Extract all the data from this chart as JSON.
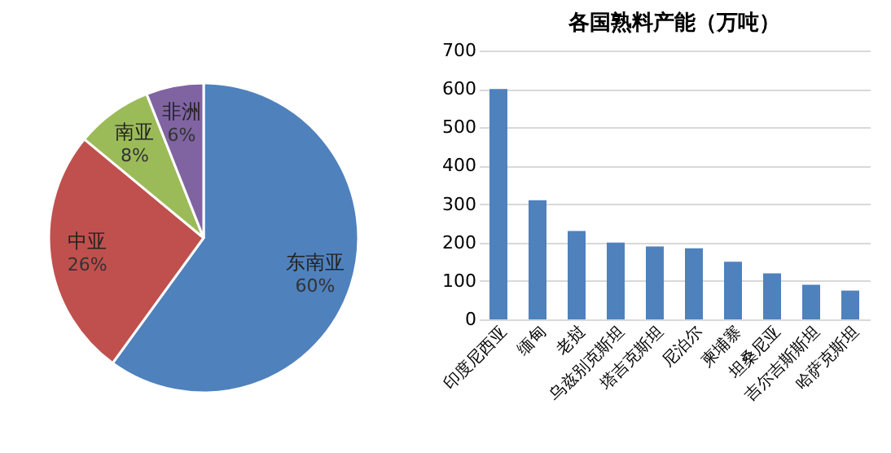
{
  "chart_data": [
    {
      "type": "pie",
      "categories": [
        "东南亚",
        "中亚",
        "南亚",
        "非洲"
      ],
      "values": [
        60,
        26,
        8,
        6
      ],
      "colors": [
        "#4f81bd",
        "#c0504d",
        "#9bbb59",
        "#8064a2"
      ],
      "value_labels": [
        "60%",
        "26%",
        "8%",
        "6%"
      ]
    },
    {
      "type": "bar",
      "title": "各国熟料产能（万吨）",
      "categories": [
        "印度尼西亚",
        "缅甸",
        "老挝",
        "乌兹别克斯坦",
        "塔吉克斯坦",
        "尼泊尔",
        "柬埔寨",
        "坦桑尼亚",
        "吉尔吉斯斯坦",
        "哈萨克斯坦"
      ],
      "values": [
        600,
        310,
        230,
        200,
        190,
        185,
        150,
        120,
        90,
        75
      ],
      "color": "#4f81bd",
      "ylim": [
        0,
        700
      ],
      "yticks": [
        0,
        100,
        200,
        300,
        400,
        500,
        600,
        700
      ],
      "grid": "y"
    }
  ]
}
